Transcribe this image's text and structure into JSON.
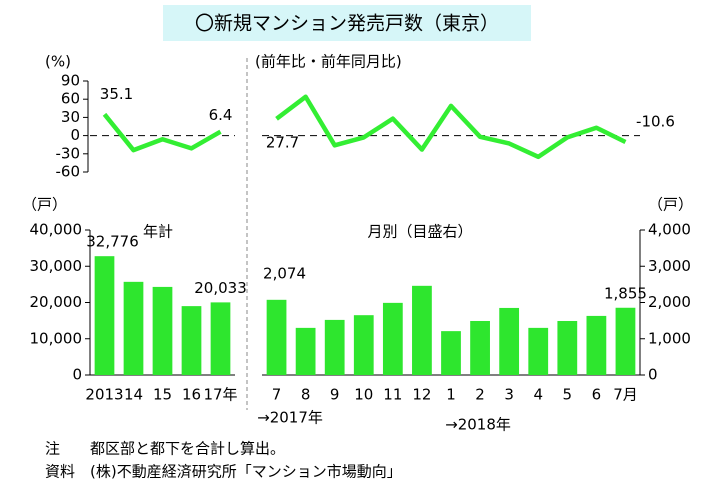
{
  "title": "〇新規マンション発売戸数（東京）",
  "notes": [
    "注　　都区部と都下を合計し算出。",
    "資料　(株)不動産経済研究所「マンション市場動向」"
  ],
  "chart_data": [
    {
      "type": "line",
      "unit_label": "(%)",
      "color": "#33ee33",
      "values": [
        35.1,
        -24,
        -6,
        -21,
        6.4
      ],
      "ylim": [
        -60,
        90
      ],
      "yticks": [
        90,
        60,
        30,
        0,
        -30,
        -60
      ]
    },
    {
      "type": "line",
      "subtitle": "(前年比・前年同月比)",
      "color": "#33ee33",
      "values": [
        27.7,
        64,
        -16,
        -3,
        28,
        -23,
        49,
        -2,
        -13,
        -35,
        -3,
        13,
        -10.6
      ],
      "ylim": [
        -60,
        90
      ]
    },
    {
      "type": "bar",
      "unit_label": "（戸）",
      "label": "年計",
      "color": "#2ee62e",
      "categories": [
        "2013",
        "14",
        "15",
        "16",
        "17年"
      ],
      "values": [
        32776,
        25700,
        24300,
        19000,
        20033
      ],
      "value_labels": [
        "32,776",
        null,
        null,
        null,
        "20,033"
      ],
      "ylim": [
        0,
        40000
      ],
      "yticks": [
        0,
        {
          "value": 10000,
          "label": "10,000"
        },
        {
          "value": 20000,
          "label": "20,000"
        },
        {
          "value": 30000,
          "label": "30,000"
        },
        {
          "value": 40000,
          "label": "40,000"
        }
      ]
    },
    {
      "type": "bar",
      "unit_label": "（戸）",
      "label": "月別（目盛右）",
      "color": "#2ee62e",
      "categories": [
        "7",
        "8",
        "9",
        "10",
        "11",
        "12",
        "1",
        "2",
        "3",
        "4",
        "5",
        "6",
        "7月"
      ],
      "values": [
        2074,
        1300,
        1520,
        1650,
        1990,
        2460,
        1210,
        1490,
        1850,
        1300,
        1490,
        1630,
        1855
      ],
      "value_labels": [
        "2,074",
        null,
        null,
        null,
        null,
        null,
        null,
        null,
        null,
        null,
        null,
        null,
        "1,855"
      ],
      "annotations": [
        "→2017年",
        "→2018年"
      ],
      "ylim": [
        0,
        4000
      ],
      "yticks": [
        0,
        {
          "value": 1000,
          "label": "1,000"
        },
        {
          "value": 2000,
          "label": "2,000"
        },
        {
          "value": 3000,
          "label": "3,000"
        },
        {
          "value": 4000,
          "label": "4,000"
        }
      ]
    }
  ]
}
